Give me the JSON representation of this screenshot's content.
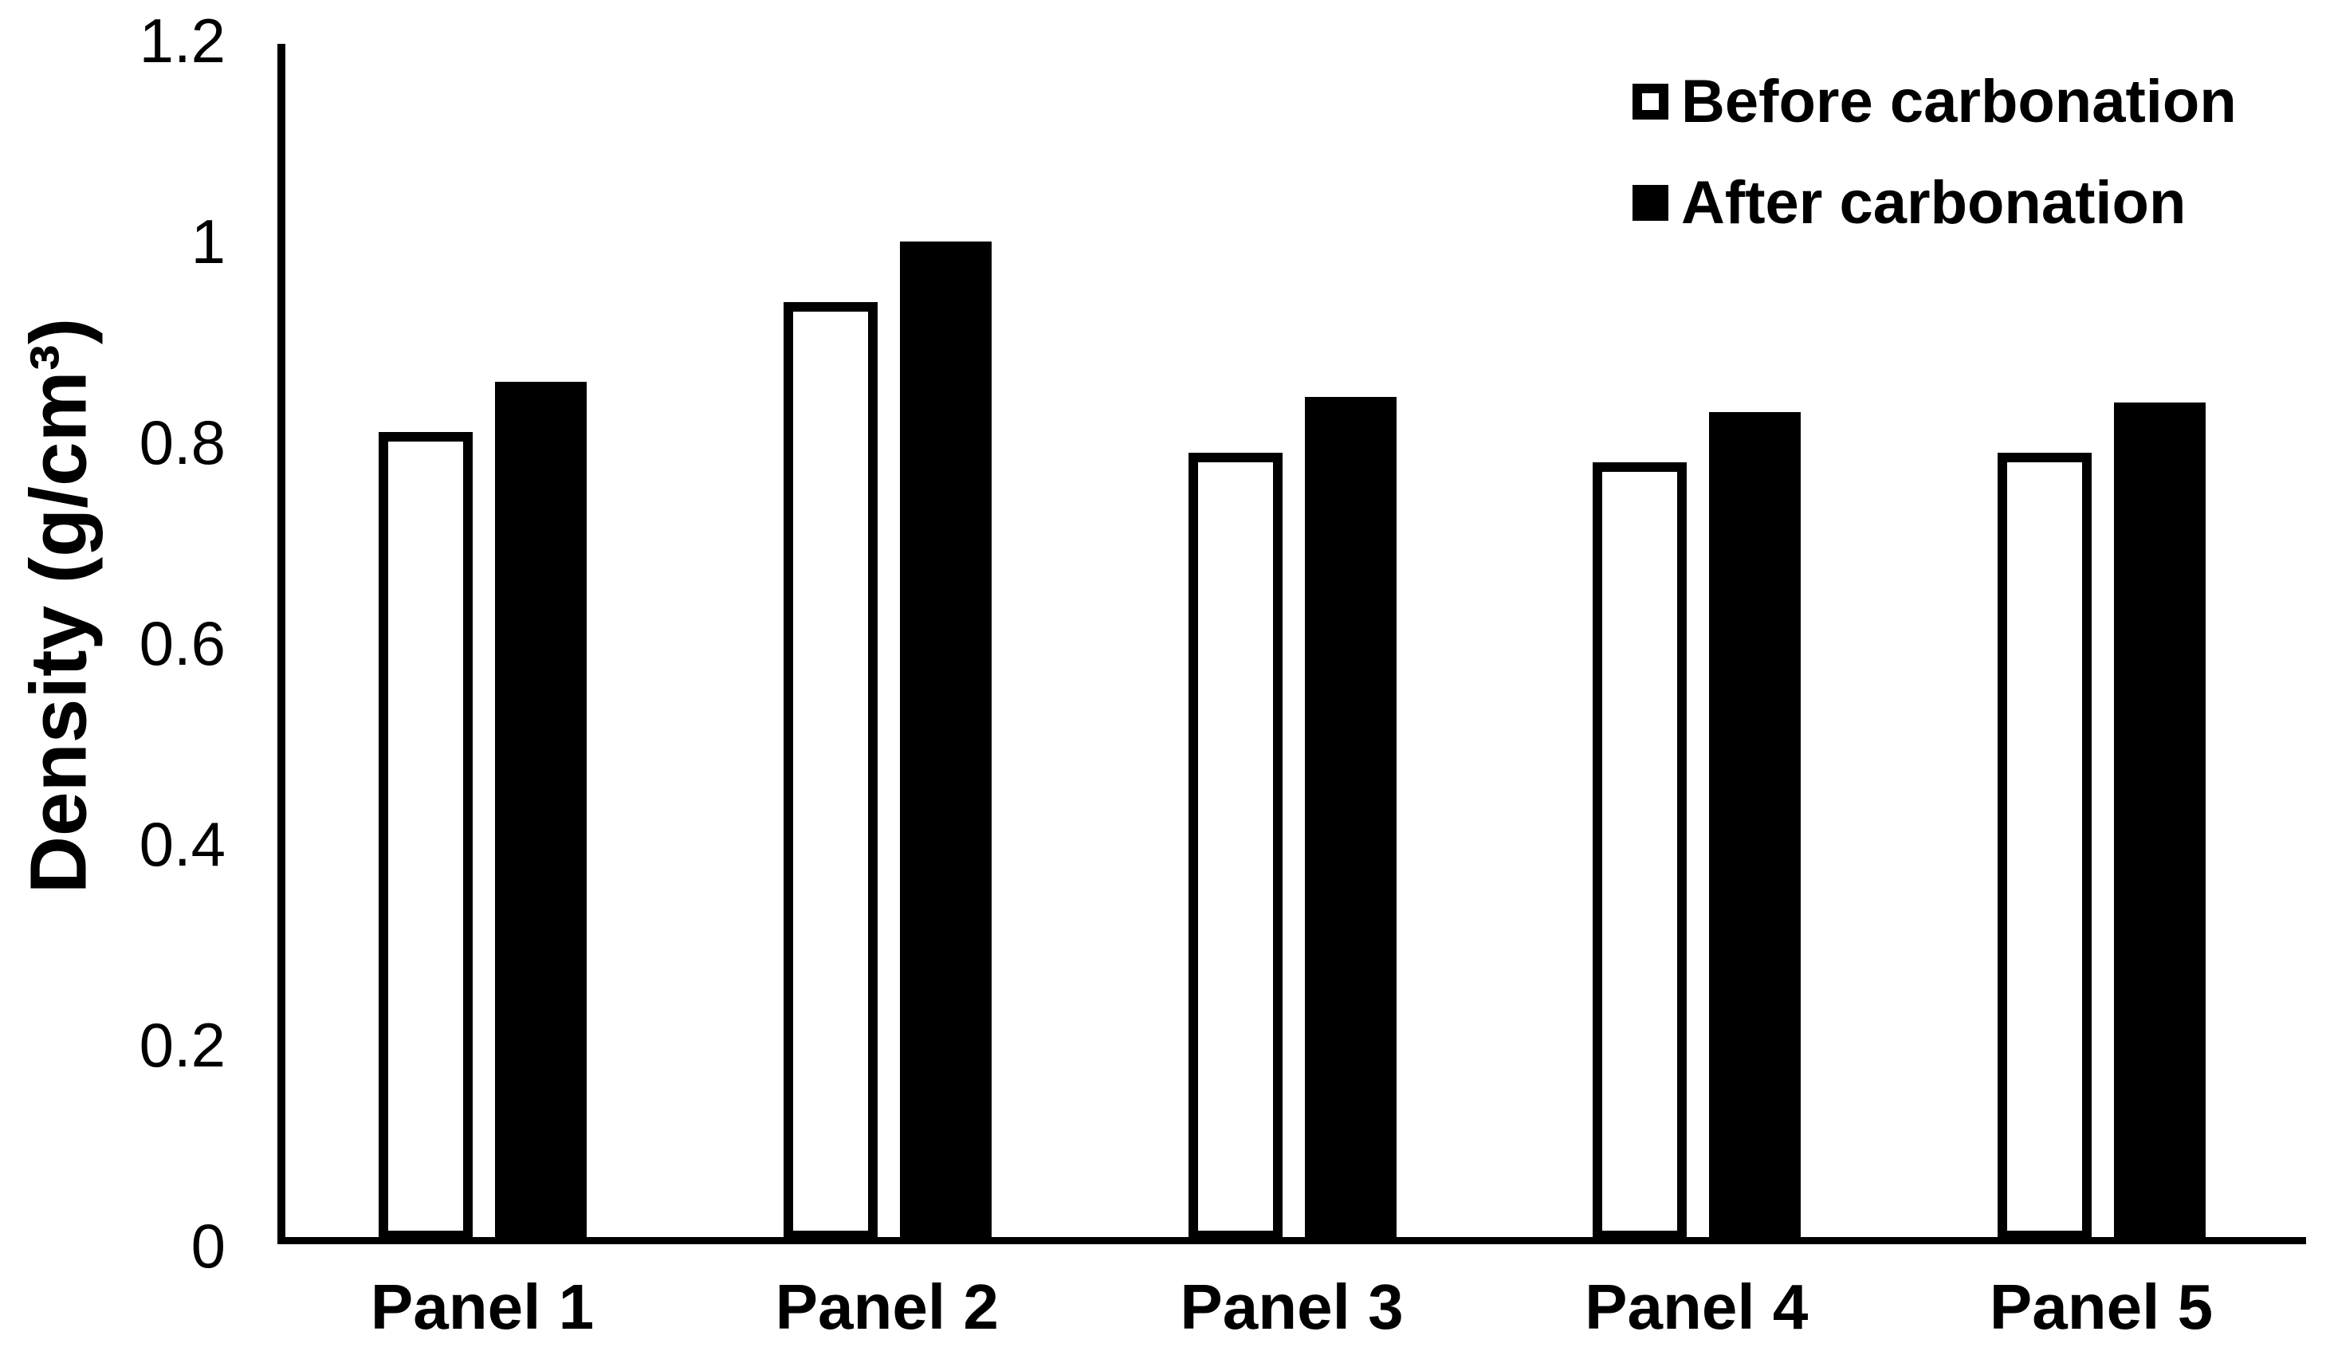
{
  "chart_data": {
    "type": "bar",
    "title": "",
    "xlabel": "",
    "ylabel": "Density (g/cm³)",
    "categories": [
      "Panel 1",
      "Panel 2",
      "Panel 3",
      "Panel 4",
      "Panel 5"
    ],
    "series": [
      {
        "name": "Before carbonation",
        "fill": "#ffffff",
        "border": "#000000",
        "values": [
          0.81,
          0.94,
          0.79,
          0.78,
          0.79
        ]
      },
      {
        "name": "After carbonation",
        "fill": "#000000",
        "border": "#000000",
        "values": [
          0.86,
          1.0,
          0.845,
          0.83,
          0.84
        ]
      }
    ],
    "ylim": [
      0,
      1.2
    ],
    "ytick_labels": [
      "0",
      "0.2",
      "0.4",
      "0.6",
      "0.8",
      "1",
      "1.2"
    ],
    "grid": false,
    "legend_position": "top-right",
    "background_color": "#ffffff",
    "axis_color": "#000000"
  }
}
